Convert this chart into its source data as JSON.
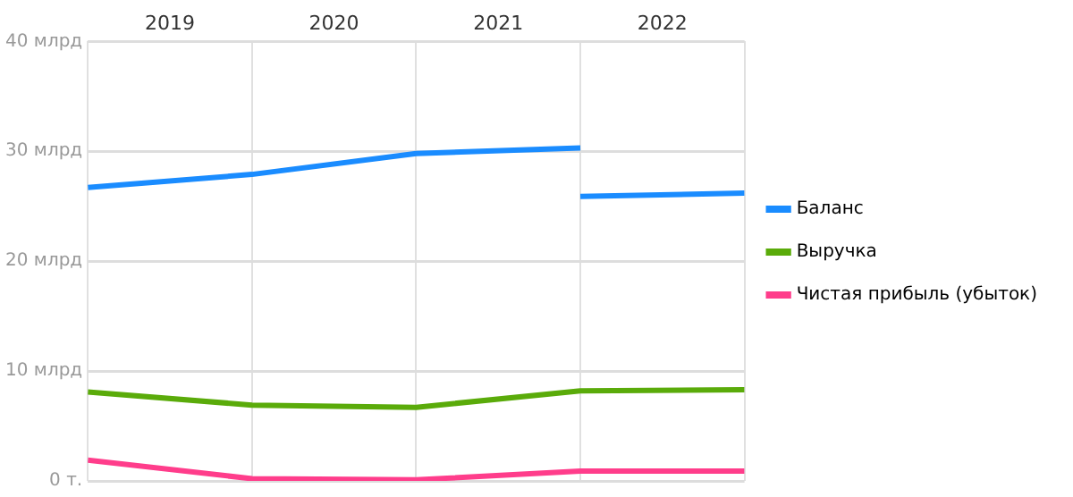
{
  "chart_data": {
    "type": "line",
    "x": [
      2019,
      2020,
      2021,
      2022,
      2023
    ],
    "series": [
      {
        "name": "Баланс",
        "color": "#1a8cff",
        "x": [
          2019,
          2020,
          2021,
          2022,
          null,
          2022,
          2023
        ],
        "values": [
          26.7,
          27.9,
          29.8,
          30.3,
          null,
          25.9,
          26.2
        ]
      },
      {
        "name": "Выручка",
        "color": "#5aab0a",
        "values": [
          8.1,
          6.9,
          6.7,
          8.2,
          8.3
        ]
      },
      {
        "name": "Чистая прибыль (убыток)",
        "color": "#ff3d8b",
        "values": [
          1.9,
          0.2,
          0.1,
          0.9,
          0.9
        ]
      }
    ],
    "xlim": [
      2019,
      2023
    ],
    "xticks": [
      {
        "value": 2019,
        "label": null
      },
      {
        "value": 2019.5,
        "label": "2019"
      },
      {
        "value": 2020,
        "label": null
      },
      {
        "value": 2020.5,
        "label": "2020"
      },
      {
        "value": 2021,
        "label": null
      },
      {
        "value": 2021.5,
        "label": "2021"
      },
      {
        "value": 2022,
        "label": null
      },
      {
        "value": 2022.5,
        "label": "2022"
      },
      {
        "value": 2023,
        "label": null
      }
    ],
    "ylim": [
      0,
      40
    ],
    "yticks": [
      {
        "value": 0,
        "label": "0 т."
      },
      {
        "value": 10,
        "label": "10 млрд"
      },
      {
        "value": 20,
        "label": "20 млрд"
      },
      {
        "value": 30,
        "label": "30 млрд"
      },
      {
        "value": 40,
        "label": "40 млрд"
      }
    ],
    "grid": true,
    "legend": "right",
    "marker": "none",
    "line_style": "solid"
  }
}
